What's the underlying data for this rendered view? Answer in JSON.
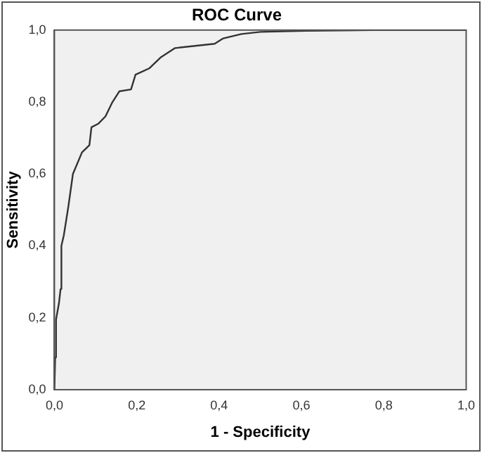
{
  "chart_data": {
    "type": "line",
    "title": "ROC Curve",
    "xlabel": "1 - Specificity",
    "ylabel": "Sensitivity",
    "x": [
      0,
      0.002,
      0.004,
      0.011,
      0.015,
      0.017,
      0.023,
      0.034,
      0.045,
      0.067,
      0.085,
      0.09,
      0.107,
      0.124,
      0.141,
      0.158,
      0.186,
      0.197,
      0.231,
      0.259,
      0.293,
      0.389,
      0.41,
      0.454,
      0.5,
      0.61,
      0.77,
      1
    ],
    "series": [
      {
        "color": "#333333",
        "values": [
          0,
          0.09,
          0.195,
          0.24,
          0.28,
          0.4,
          0.43,
          0.51,
          0.6,
          0.66,
          0.68,
          0.73,
          0.74,
          0.76,
          0.8,
          0.83,
          0.835,
          0.876,
          0.894,
          0.925,
          0.95,
          0.962,
          0.977,
          0.989,
          0.995,
          0.998,
          1,
          1
        ]
      }
    ],
    "xlim": [
      0,
      1
    ],
    "ylim": [
      0,
      1
    ],
    "xticks": [
      {
        "value": 0,
        "label": "0,0"
      },
      {
        "value": 0.2,
        "label": "0,2"
      },
      {
        "value": 0.4,
        "label": "0,4"
      },
      {
        "value": 0.6,
        "label": "0,6"
      },
      {
        "value": 0.8,
        "label": "0,8"
      },
      {
        "value": 1,
        "label": "1,0"
      }
    ],
    "yticks": [
      {
        "value": 0,
        "label": "0,0"
      },
      {
        "value": 0.2,
        "label": "0,2"
      },
      {
        "value": 0.4,
        "label": "0,4"
      },
      {
        "value": 0.6,
        "label": "0,6"
      },
      {
        "value": 0.8,
        "label": "0,8"
      },
      {
        "value": 1,
        "label": "1,0"
      }
    ],
    "grid": false,
    "legend": false,
    "marker": "none",
    "line_style": "solid"
  }
}
